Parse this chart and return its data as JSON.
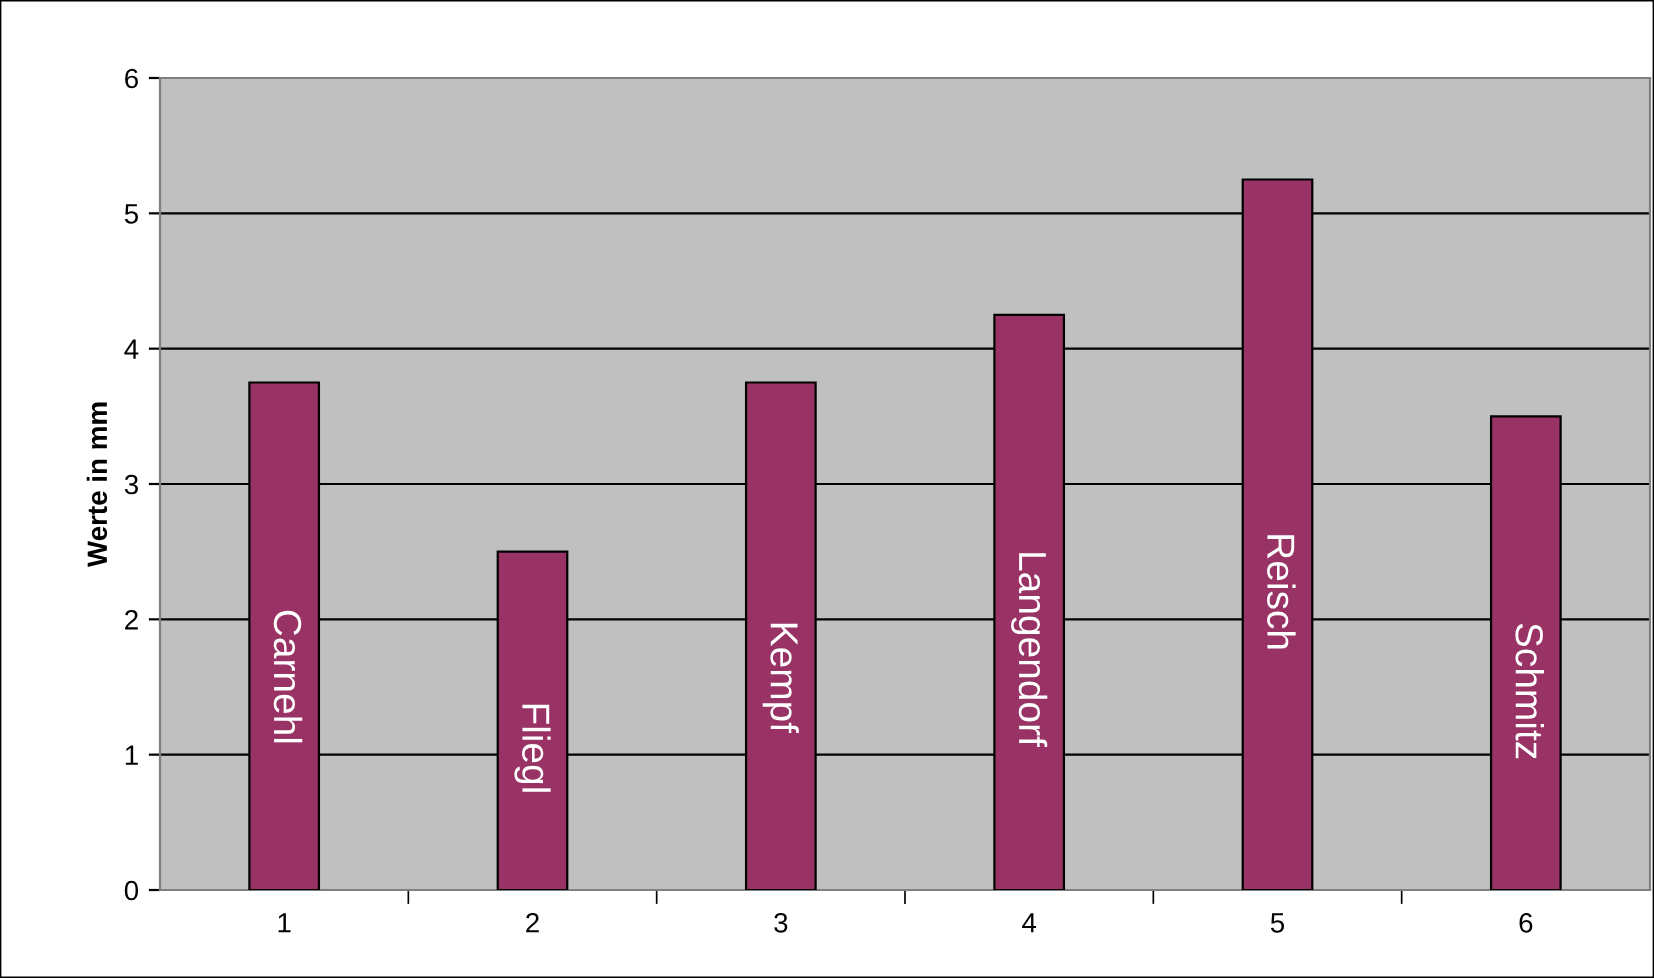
{
  "chart_data": {
    "type": "bar",
    "ylabel": "Werte in mm",
    "categories": [
      "1",
      "2",
      "3",
      "4",
      "5",
      "6"
    ],
    "values": [
      3.75,
      2.5,
      3.75,
      4.25,
      5.25,
      3.5
    ],
    "color": "#993366",
    "ylim": [
      0,
      6
    ],
    "yticks": [
      0,
      1,
      2,
      3,
      4,
      5,
      6
    ],
    "grid": "y",
    "annotations": [
      "Carnehl",
      "Fliegl",
      "Kempf",
      "Langendorf",
      "Reisch",
      "Schmitz"
    ]
  }
}
